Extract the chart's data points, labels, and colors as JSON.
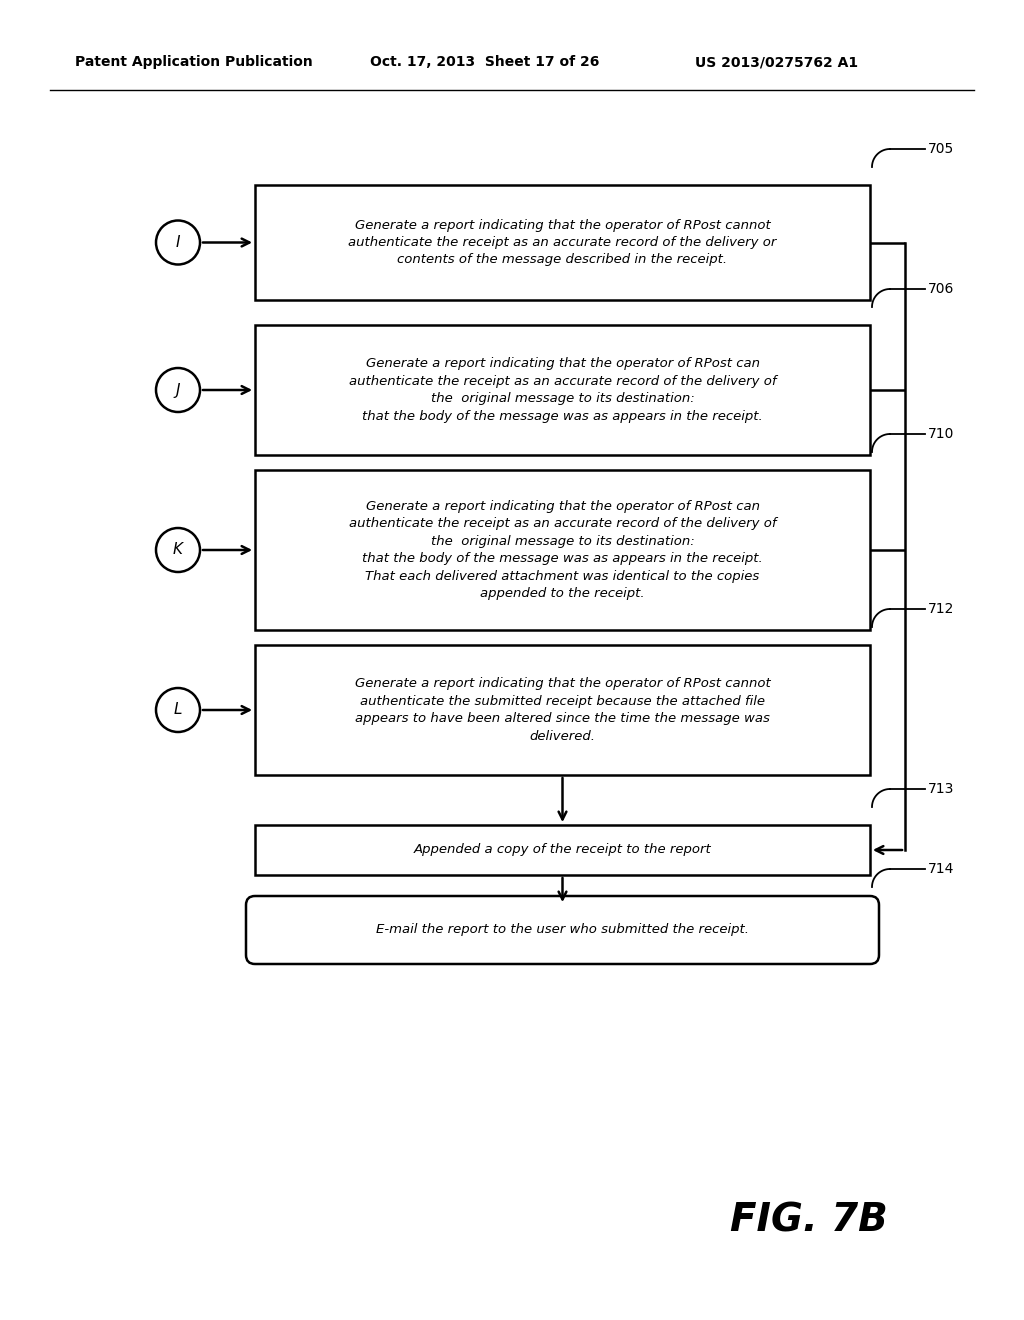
{
  "background_color": "#ffffff",
  "header_left": "Patent Application Publication",
  "header_mid": "Oct. 17, 2013  Sheet 17 of 26",
  "header_right": "US 2013/0275762 A1",
  "figure_label": "FIG. 7B",
  "boxes": [
    {
      "id": "705",
      "label": "I",
      "text": "Generate a report indicating that the operator of RPost cannot\nauthenticate the receipt as an accurate record of the delivery or\ncontents of the message described in the receipt.",
      "shape": "rectangle"
    },
    {
      "id": "706",
      "label": "J",
      "text": "Generate a report indicating that the operator of RPost can\nauthenticate the receipt as an accurate record of the delivery of\nthe  original message to its destination:\nthat the body of the message was as appears in the receipt.",
      "shape": "rectangle"
    },
    {
      "id": "710",
      "label": "K",
      "text": "Generate a report indicating that the operator of RPost can\nauthenticate the receipt as an accurate record of the delivery of\nthe  original message to its destination:\nthat the body of the message was as appears in the receipt.\nThat each delivered attachment was identical to the copies\nappended to the receipt.",
      "shape": "rectangle"
    },
    {
      "id": "712",
      "label": "L",
      "text": "Generate a report indicating that the operator of RPost cannot\nauthenticate the submitted receipt because the attached file\nappears to have been altered since the time the message was\ndelivered.",
      "shape": "rectangle"
    },
    {
      "id": "713",
      "label": null,
      "text": "Appended a copy of the receipt to the report",
      "shape": "rectangle"
    },
    {
      "id": "714",
      "label": null,
      "text": "E-mail the report to the user who submitted the receipt.",
      "shape": "rounded"
    }
  ]
}
